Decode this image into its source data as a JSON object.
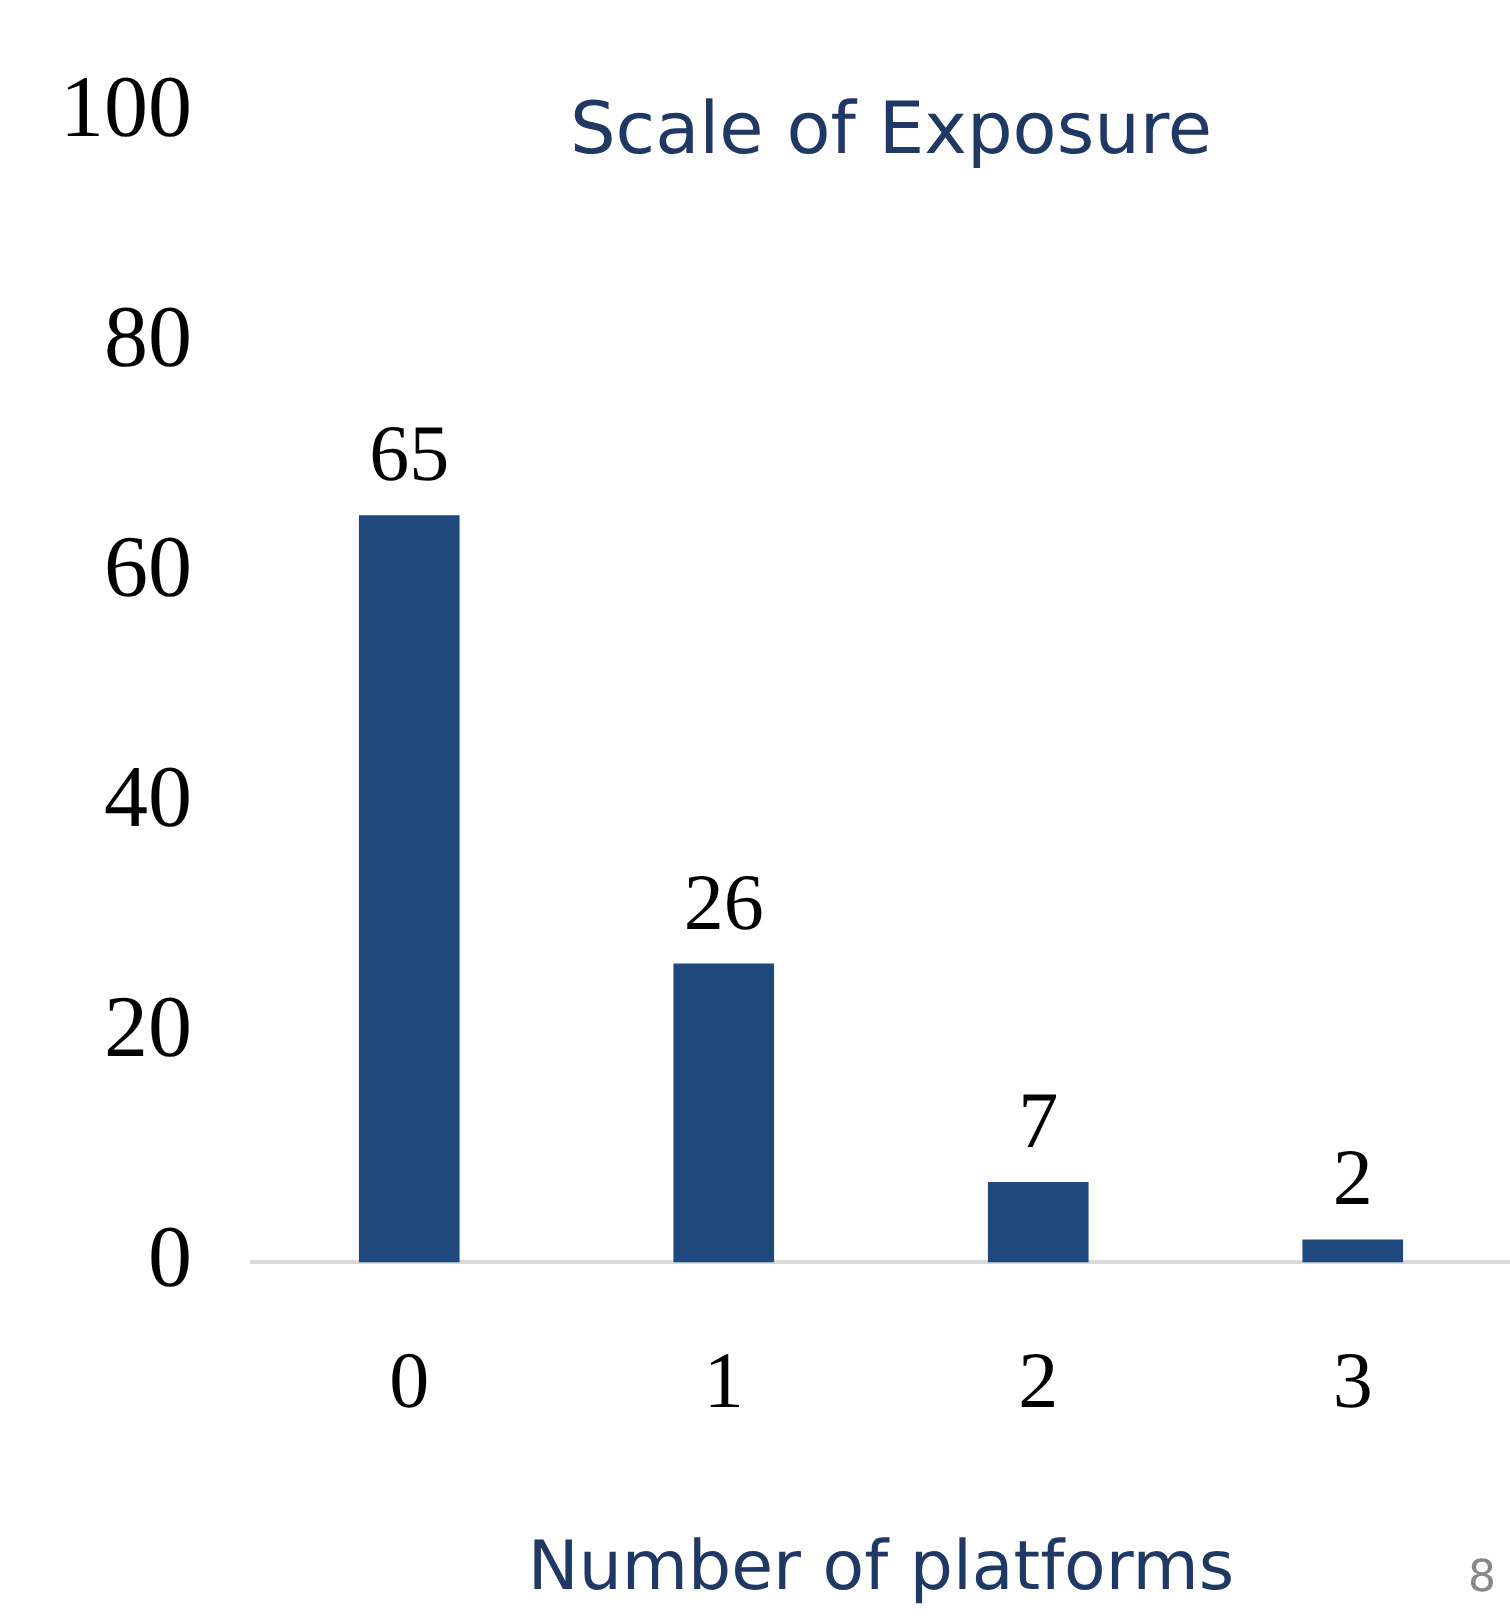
{
  "chart_data": {
    "type": "bar",
    "title": "Scale of Exposure",
    "xlabel": "Number of platforms",
    "categories": [
      "0",
      "1",
      "2",
      "3"
    ],
    "values": [
      65,
      26,
      7,
      2
    ],
    "color": "#1f497d",
    "ylim": [
      0,
      100
    ],
    "yticks": [
      0,
      20,
      40,
      60,
      80,
      100
    ],
    "grid": false,
    "legend": false,
    "data_labels": true,
    "annotations": [
      "8"
    ]
  }
}
